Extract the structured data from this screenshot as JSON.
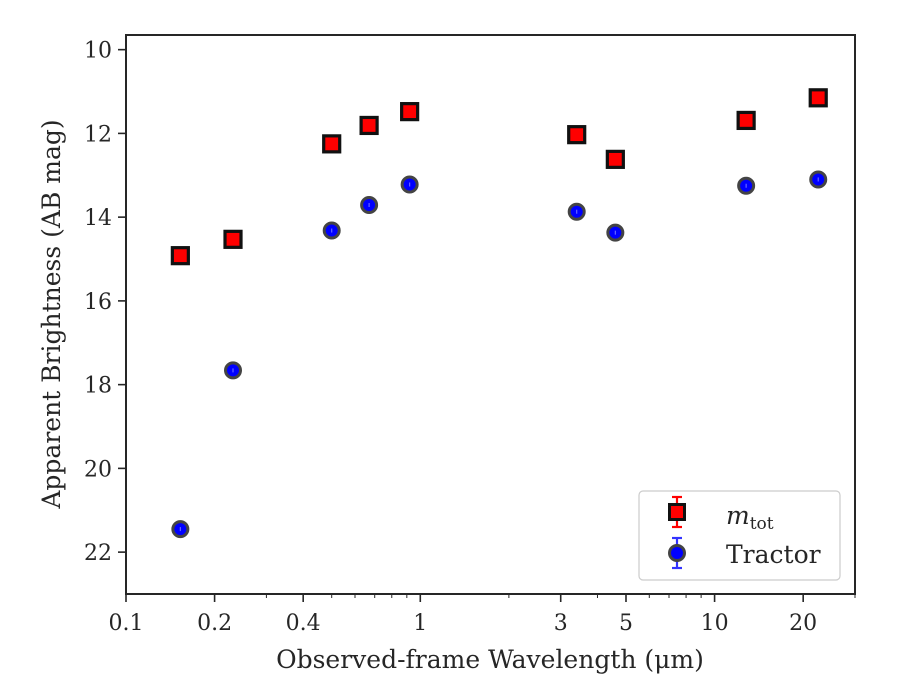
{
  "chart_data": {
    "type": "scatter",
    "xlabel": "Observed-frame Wavelength (μm)",
    "ylabel": "Apparent Brightness (AB mag)",
    "x_scale": "log",
    "xlim": [
      0.1,
      30
    ],
    "ylim": [
      23,
      9.65
    ],
    "y_inverted": true,
    "x_ticks": [
      {
        "value": 0.1,
        "label": "0.1"
      },
      {
        "value": 0.2,
        "label": "0.2"
      },
      {
        "value": 0.4,
        "label": "0.4"
      },
      {
        "value": 1,
        "label": "1"
      },
      {
        "value": 3,
        "label": "3"
      },
      {
        "value": 5,
        "label": "5"
      },
      {
        "value": 10,
        "label": "10"
      },
      {
        "value": 20,
        "label": "20"
      }
    ],
    "y_ticks": [
      {
        "value": 10,
        "label": "10"
      },
      {
        "value": 12,
        "label": "12"
      },
      {
        "value": 14,
        "label": "14"
      },
      {
        "value": 16,
        "label": "16"
      },
      {
        "value": 18,
        "label": "18"
      },
      {
        "value": 20,
        "label": "20"
      },
      {
        "value": 22,
        "label": "22"
      }
    ],
    "grid": false,
    "legend_position": "lower-right",
    "series": [
      {
        "name": "m_tot",
        "legend_base": "m",
        "legend_sub": "tot",
        "marker": "square",
        "color": "#ff0000",
        "edge_color": "#111111",
        "errorbar_color": "#ff0000",
        "points": [
          {
            "x": 0.153,
            "y": 14.92
          },
          {
            "x": 0.231,
            "y": 14.53
          },
          {
            "x": 0.5,
            "y": 12.25
          },
          {
            "x": 0.67,
            "y": 11.81
          },
          {
            "x": 0.92,
            "y": 11.48
          },
          {
            "x": 3.4,
            "y": 12.03
          },
          {
            "x": 4.6,
            "y": 12.62
          },
          {
            "x": 12.8,
            "y": 11.69
          },
          {
            "x": 22.5,
            "y": 11.15
          }
        ]
      },
      {
        "name": "Tractor",
        "marker": "circle",
        "color": "#0000ff",
        "edge_color": "#444444",
        "errorbar_color": "#3333ff",
        "points": [
          {
            "x": 0.153,
            "y": 21.45
          },
          {
            "x": 0.231,
            "y": 17.66
          },
          {
            "x": 0.5,
            "y": 14.32
          },
          {
            "x": 0.67,
            "y": 13.71
          },
          {
            "x": 0.92,
            "y": 13.22
          },
          {
            "x": 3.4,
            "y": 13.87
          },
          {
            "x": 4.6,
            "y": 14.37
          },
          {
            "x": 12.8,
            "y": 13.25
          },
          {
            "x": 22.5,
            "y": 13.1
          }
        ]
      }
    ]
  }
}
